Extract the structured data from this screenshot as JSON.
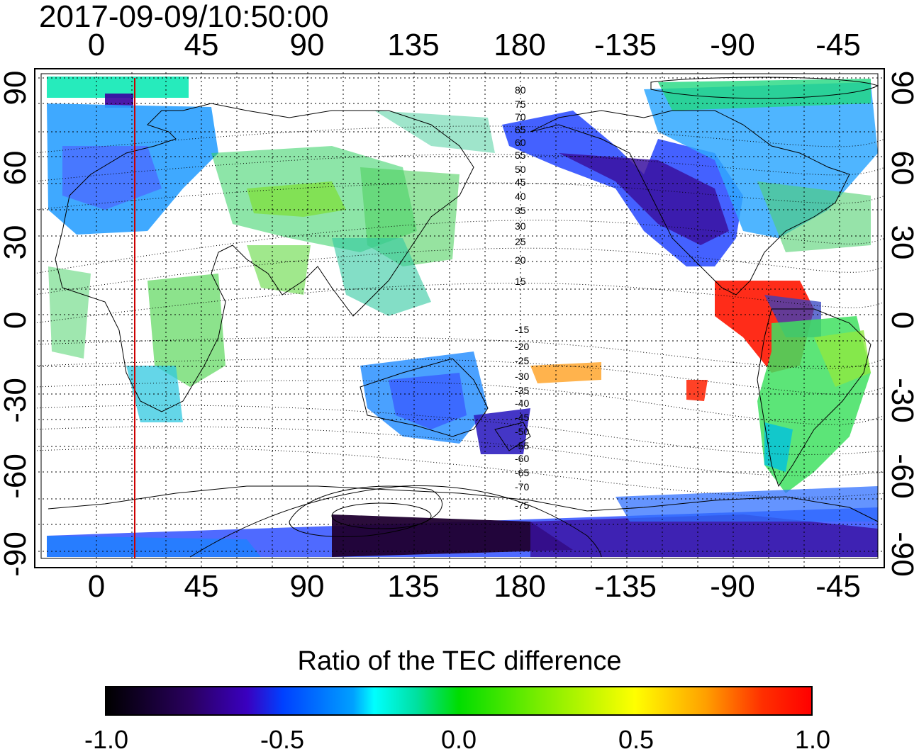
{
  "title": "2017-09-09/10:50:00",
  "axes": {
    "lon_ticks": [
      "0",
      "45",
      "90",
      "135",
      "180",
      "-135",
      "-90",
      "-45"
    ],
    "lat_ticks": [
      "90",
      "60",
      "30",
      "0",
      "-30",
      "-60",
      "-90"
    ]
  },
  "marker": {
    "longitude_label": "17",
    "color": "#cc0000"
  },
  "contour_labels": [
    "80",
    "75",
    "70",
    "65",
    "60",
    "55",
    "50",
    "45",
    "40",
    "35",
    "30",
    "25",
    "20",
    "15",
    "-15",
    "-20",
    "-25",
    "-30",
    "-35",
    "-40",
    "-45",
    "-50",
    "-55",
    "-60",
    "-65",
    "-70",
    "-75"
  ],
  "colorbar": {
    "title": "Ratio of the TEC difference",
    "ticks": [
      "-1.0",
      "-0.5",
      "0.0",
      "0.5",
      "1.0"
    ],
    "range": [
      -1.0,
      1.0
    ]
  },
  "colors": {
    "land_outline": "#000000",
    "grid": "#000000"
  }
}
